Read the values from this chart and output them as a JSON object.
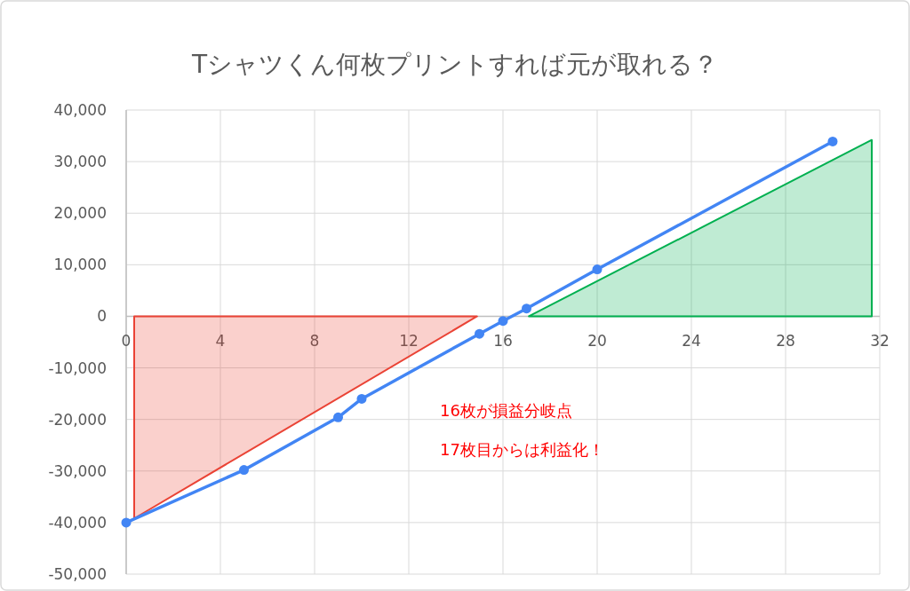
{
  "chart_data": {
    "type": "line",
    "title": "Tシャツくん何枚プリントすれば元が取れる？",
    "series": [
      {
        "type": "area",
        "color": "#ea4335",
        "x": [
          0.34,
          14.9
        ],
        "values": [
          -39200,
          0
        ],
        "marker": "none"
      },
      {
        "type": "area",
        "color": "#00b050",
        "x": [
          17.1,
          31.66
        ],
        "values": [
          0,
          34200
        ],
        "marker": "none"
      },
      {
        "color": "#4285f4",
        "x": [
          0,
          5,
          9,
          10,
          15,
          16,
          17,
          20,
          30
        ],
        "values": [
          -40000,
          -29800,
          -19600,
          -16000,
          -3400,
          -900,
          1500,
          9100,
          33900
        ],
        "marker": "circle"
      }
    ],
    "xlim": [
      0,
      32
    ],
    "xticks": [
      0,
      4,
      8,
      12,
      16,
      20,
      24,
      28,
      32
    ],
    "ylim": [
      -50000,
      40000
    ],
    "yticks": [
      {
        "value": -50000,
        "label": "-50,000"
      },
      {
        "value": -40000,
        "label": "-40,000"
      },
      {
        "value": -30000,
        "label": "-30,000"
      },
      {
        "value": -20000,
        "label": "-20,000"
      },
      {
        "value": -10000,
        "label": "-10,000"
      },
      0,
      {
        "value": 10000,
        "label": "10,000"
      },
      {
        "value": 20000,
        "label": "20,000"
      },
      {
        "value": 30000,
        "label": "30,000"
      },
      {
        "value": 40000,
        "label": "40,000"
      }
    ],
    "grid": true,
    "annotations": [
      "16枚が損益分岐点",
      "17枚目からは利益化！"
    ]
  }
}
